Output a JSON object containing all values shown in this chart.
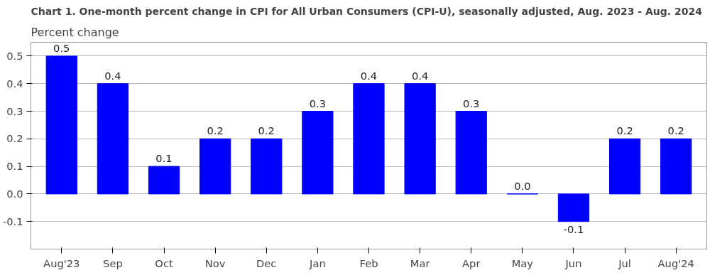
{
  "chart_data": {
    "type": "bar",
    "title": "Chart 1. One-month percent change in CPI for All Urban Consumers (CPI-U), seasonally adjusted, Aug. 2023 - Aug. 2024",
    "subtitle": "Percent change",
    "categories": [
      "Aug'23",
      "Sep",
      "Oct",
      "Nov",
      "Dec",
      "Jan",
      "Feb",
      "Mar",
      "Apr",
      "May",
      "Jun",
      "Jul",
      "Aug'24"
    ],
    "values": [
      0.5,
      0.4,
      0.1,
      0.2,
      0.2,
      0.3,
      0.4,
      0.4,
      0.3,
      0.0,
      -0.1,
      0.2,
      0.2
    ],
    "value_labels": [
      "0.5",
      "0.4",
      "0.1",
      "0.2",
      "0.2",
      "0.3",
      "0.4",
      "0.4",
      "0.3",
      "0.0",
      "-0.1",
      "0.2",
      "0.2"
    ],
    "color": "#0000ff",
    "ylim": [
      -0.2,
      0.55
    ],
    "yticks": [
      -0.1,
      {
        "value": 0,
        "label": "0.0"
      },
      0.1,
      0.2,
      0.3,
      0.4,
      0.5
    ],
    "grid": "y"
  }
}
